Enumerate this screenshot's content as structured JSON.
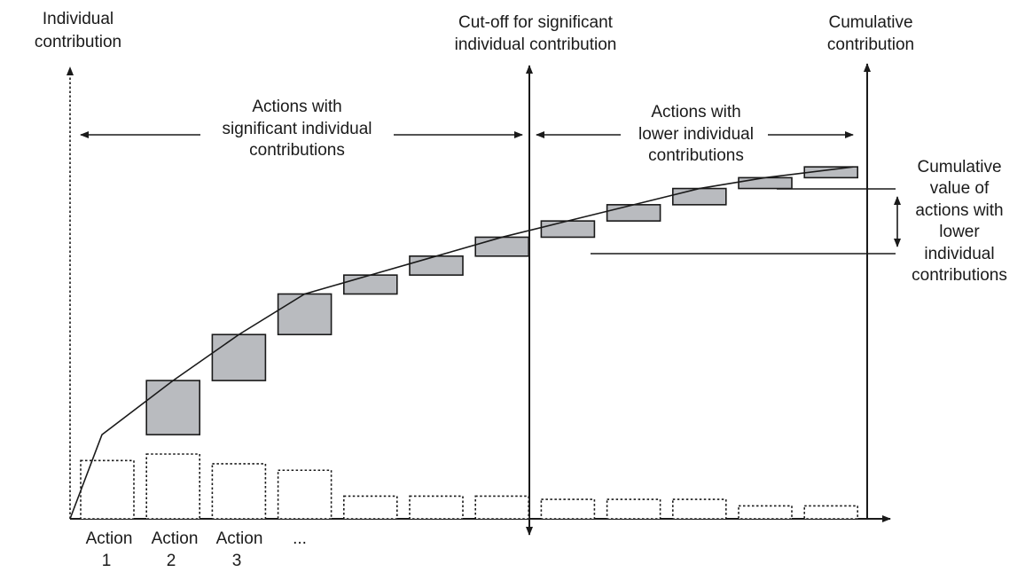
{
  "labels": {
    "individual_axis": [
      "Individual",
      "contribution"
    ],
    "cutoff": [
      "Cut-off for significant",
      "individual contribution"
    ],
    "cumulative_axis": [
      "Cumulative",
      "contribution"
    ],
    "significant_span": [
      "Actions with",
      "significant individual",
      "contributions"
    ],
    "lower_span": [
      "Actions with",
      "lower individual",
      "contributions"
    ],
    "cumulative_value": [
      "Cumulative",
      "value of",
      "actions with",
      "lower",
      "individual",
      "contributions"
    ],
    "actions": [
      [
        "Action",
        "1"
      ],
      [
        "Action",
        "2"
      ],
      [
        "Action",
        "3"
      ],
      [
        "...",
        ""
      ]
    ]
  },
  "colors": {
    "cumulative_fill": "#b9bbbf",
    "ink": "#1a1a1a"
  },
  "chart_data": {
    "type": "bar",
    "note_values": "individual contributions (dotted bars) and cumulative increments (grey boxes) in relative units",
    "individual": [
      9,
      10,
      8.5,
      7.5,
      3.5,
      3.5,
      3.5,
      3,
      3,
      3,
      2,
      2
    ],
    "cumulative": [
      9,
      19,
      27.5,
      35,
      38.5,
      42,
      45.5,
      48.5,
      51.5,
      54.5,
      56.5,
      58.5
    ],
    "cutoff_after_index": 6
  }
}
